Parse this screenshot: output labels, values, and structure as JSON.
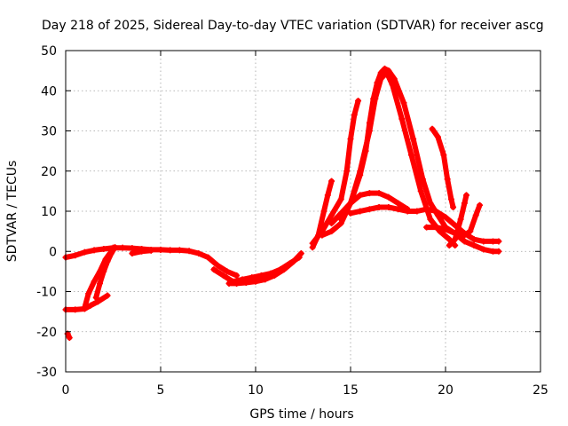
{
  "chart_data": {
    "type": "scatter",
    "title": "Day 218 of 2025, Sidereal Day-to-day VTEC variation (SDTVAR) for receiver ascg",
    "xlabel": "GPS time / hours",
    "ylabel": "SDTVAR / TECUs",
    "xlim": [
      0,
      25
    ],
    "ylim": [
      -30,
      50
    ],
    "xticks": [
      0,
      5,
      10,
      15,
      20,
      25
    ],
    "yticks": [
      -30,
      -20,
      -10,
      0,
      10,
      20,
      30,
      40,
      50
    ],
    "grid": true,
    "marker": "plus",
    "color": "#ff0000",
    "series": [
      {
        "name": "trace-1",
        "points": [
          [
            0.0,
            -1.5
          ],
          [
            0.5,
            -1.0
          ],
          [
            1.0,
            -0.2
          ],
          [
            1.5,
            0.3
          ],
          [
            2.0,
            0.6
          ],
          [
            2.5,
            0.9
          ],
          [
            3.0,
            0.9
          ],
          [
            3.5,
            0.8
          ],
          [
            4.0,
            0.6
          ],
          [
            4.5,
            0.4
          ],
          [
            5.0,
            0.4
          ],
          [
            5.5,
            0.3
          ],
          [
            6.0,
            0.3
          ],
          [
            6.5,
            0.1
          ],
          [
            7.0,
            -0.5
          ],
          [
            7.5,
            -1.5
          ],
          [
            8.0,
            -3.5
          ],
          [
            8.5,
            -5.0
          ],
          [
            9.0,
            -6.0
          ]
        ]
      },
      {
        "name": "trace-2",
        "points": [
          [
            0.0,
            -14.5
          ],
          [
            0.5,
            -14.5
          ],
          [
            1.0,
            -14.3
          ],
          [
            1.3,
            -13.5
          ],
          [
            1.7,
            -12.5
          ],
          [
            2.2,
            -11.0
          ]
        ]
      },
      {
        "name": "trace-3",
        "points": [
          [
            1.0,
            -14.0
          ],
          [
            1.2,
            -10.5
          ],
          [
            1.5,
            -7.5
          ],
          [
            1.8,
            -5.0
          ],
          [
            2.1,
            -2.0
          ],
          [
            2.4,
            0.0
          ],
          [
            2.6,
            1.0
          ]
        ]
      },
      {
        "name": "trace-4",
        "points": [
          [
            1.6,
            -11.5
          ],
          [
            1.8,
            -8.0
          ],
          [
            2.0,
            -5.0
          ],
          [
            2.2,
            -2.5
          ],
          [
            2.4,
            -0.5
          ],
          [
            2.6,
            1.0
          ]
        ]
      },
      {
        "name": "trace-5",
        "points": [
          [
            0.1,
            -20.5
          ],
          [
            0.2,
            -21.5
          ]
        ]
      },
      {
        "name": "trace-6",
        "points": [
          [
            7.8,
            -4.5
          ],
          [
            8.3,
            -6.0
          ],
          [
            8.8,
            -7.5
          ],
          [
            9.3,
            -7.0
          ],
          [
            9.8,
            -6.5
          ],
          [
            10.3,
            -6.0
          ],
          [
            10.8,
            -5.5
          ],
          [
            11.3,
            -4.5
          ],
          [
            11.8,
            -3.0
          ],
          [
            12.3,
            -1.5
          ]
        ]
      },
      {
        "name": "trace-7",
        "points": [
          [
            8.6,
            -8.0
          ],
          [
            9.0,
            -8.0
          ],
          [
            9.5,
            -7.8
          ],
          [
            10.0,
            -7.5
          ],
          [
            10.5,
            -7.0
          ],
          [
            11.0,
            -6.0
          ],
          [
            11.5,
            -4.5
          ],
          [
            12.0,
            -2.5
          ],
          [
            12.4,
            -0.5
          ]
        ]
      },
      {
        "name": "trace-8",
        "points": [
          [
            13.0,
            1.0
          ],
          [
            13.3,
            4.0
          ],
          [
            13.6,
            10.0
          ],
          [
            13.8,
            14.0
          ],
          [
            14.0,
            17.5
          ]
        ]
      },
      {
        "name": "trace-9",
        "points": [
          [
            13.0,
            2.0
          ],
          [
            13.5,
            5.0
          ],
          [
            14.0,
            9.0
          ],
          [
            14.5,
            13.0
          ],
          [
            14.8,
            20.0
          ],
          [
            15.0,
            28.0
          ],
          [
            15.2,
            34.0
          ],
          [
            15.4,
            37.5
          ]
        ]
      },
      {
        "name": "trace-10",
        "points": [
          [
            13.5,
            4.0
          ],
          [
            14.0,
            5.0
          ],
          [
            14.5,
            7.0
          ],
          [
            15.0,
            12.0
          ],
          [
            15.5,
            19.0
          ],
          [
            15.8,
            25.0
          ],
          [
            16.0,
            32.0
          ],
          [
            16.2,
            38.0
          ],
          [
            16.4,
            42.0
          ],
          [
            16.6,
            44.5
          ],
          [
            16.8,
            45.5
          ],
          [
            17.0,
            45.0
          ],
          [
            17.3,
            43.0
          ],
          [
            17.8,
            37.0
          ],
          [
            18.3,
            28.0
          ],
          [
            18.8,
            18.0
          ],
          [
            19.2,
            12.0
          ],
          [
            19.6,
            9.0
          ],
          [
            20.0,
            6.0
          ],
          [
            20.5,
            4.5
          ],
          [
            21.0,
            2.5
          ],
          [
            21.5,
            1.5
          ],
          [
            22.0,
            0.5
          ],
          [
            22.5,
            0.0
          ],
          [
            22.8,
            0.0
          ]
        ]
      },
      {
        "name": "trace-11",
        "points": [
          [
            14.5,
            8.0
          ],
          [
            15.0,
            12.0
          ],
          [
            15.5,
            20.0
          ],
          [
            16.0,
            30.0
          ],
          [
            16.3,
            38.0
          ],
          [
            16.6,
            43.0
          ],
          [
            16.9,
            44.5
          ],
          [
            17.2,
            41.5
          ],
          [
            17.7,
            33.0
          ],
          [
            18.2,
            24.0
          ],
          [
            18.7,
            15.0
          ],
          [
            19.2,
            8.0
          ],
          [
            19.7,
            5.0
          ],
          [
            20.2,
            3.0
          ],
          [
            20.5,
            1.5
          ]
        ]
      },
      {
        "name": "trace-12",
        "points": [
          [
            14.0,
            7.0
          ],
          [
            14.5,
            9.5
          ],
          [
            15.0,
            12.0
          ],
          [
            15.5,
            14.0
          ],
          [
            16.0,
            14.5
          ],
          [
            16.5,
            14.5
          ],
          [
            17.0,
            13.5
          ],
          [
            17.5,
            12.0
          ],
          [
            18.0,
            10.5
          ]
        ]
      },
      {
        "name": "trace-13",
        "points": [
          [
            15.0,
            9.5
          ],
          [
            15.5,
            10.0
          ],
          [
            16.0,
            10.5
          ],
          [
            16.5,
            11.0
          ],
          [
            17.0,
            11.0
          ],
          [
            17.5,
            10.5
          ],
          [
            18.0,
            10.0
          ],
          [
            18.5,
            10.0
          ],
          [
            19.0,
            10.5
          ],
          [
            19.5,
            10.0
          ],
          [
            20.0,
            8.5
          ],
          [
            20.5,
            6.5
          ],
          [
            21.0,
            4.5
          ],
          [
            21.5,
            3.0
          ],
          [
            22.0,
            2.5
          ],
          [
            22.5,
            2.5
          ],
          [
            22.8,
            2.5
          ]
        ]
      },
      {
        "name": "trace-14",
        "points": [
          [
            19.3,
            30.5
          ],
          [
            19.6,
            28.5
          ],
          [
            19.9,
            24.0
          ],
          [
            20.1,
            18.0
          ],
          [
            20.3,
            13.0
          ],
          [
            20.4,
            11.0
          ]
        ]
      },
      {
        "name": "trace-15",
        "points": [
          [
            19.0,
            6.0
          ],
          [
            19.5,
            6.0
          ],
          [
            20.0,
            5.5
          ],
          [
            20.5,
            4.5
          ],
          [
            21.0,
            4.0
          ],
          [
            21.3,
            5.0
          ],
          [
            21.6,
            9.0
          ],
          [
            21.8,
            11.5
          ]
        ]
      },
      {
        "name": "trace-16",
        "points": [
          [
            20.2,
            1.5
          ],
          [
            20.5,
            3.0
          ],
          [
            20.8,
            8.0
          ],
          [
            21.0,
            12.0
          ],
          [
            21.1,
            14.0
          ]
        ]
      },
      {
        "name": "trace-17",
        "points": [
          [
            3.5,
            -0.5
          ],
          [
            4.0,
            0.0
          ],
          [
            4.5,
            0.2
          ]
        ]
      }
    ]
  }
}
